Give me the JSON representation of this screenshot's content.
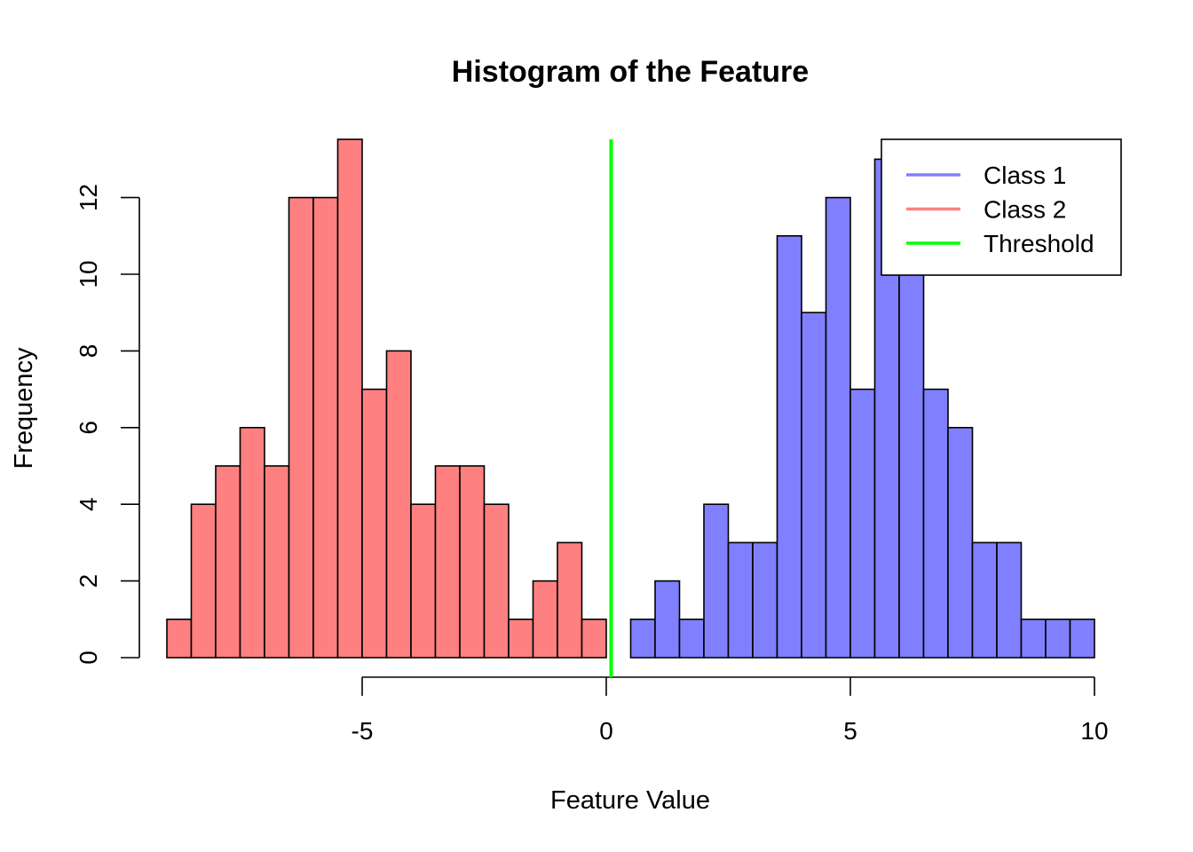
{
  "chart_data": {
    "type": "bar",
    "title": "Histogram of the Feature",
    "xlabel": "Feature Value",
    "ylabel": "Frequency",
    "bin_width": 0.5,
    "xlim": [
      -9,
      10
    ],
    "ylim": [
      0,
      13.5
    ],
    "x_ticks": [
      -5,
      0,
      5,
      10
    ],
    "x_tick_labels": [
      "-5",
      "0",
      "5",
      "10"
    ],
    "y_ticks": [
      0,
      2,
      4,
      6,
      8,
      10,
      12
    ],
    "y_tick_labels": [
      "0",
      "2",
      "4",
      "6",
      "8",
      "10",
      "12"
    ],
    "grid": false,
    "legend_position": "top-right",
    "series": [
      {
        "name": "Class 2",
        "color": "#ff8080",
        "bin_starts": [
          -9,
          -8.5,
          -8,
          -7.5,
          -7,
          -6.5,
          -6,
          -5.5,
          -5,
          -4.5,
          -4,
          -3.5,
          -3,
          -2.5,
          -2,
          -1.5,
          -1,
          -0.5
        ],
        "values": [
          1,
          4,
          5,
          6,
          5,
          12,
          12,
          14,
          7,
          8,
          4,
          5,
          5,
          4,
          1,
          2,
          3,
          1
        ]
      },
      {
        "name": "Class 1",
        "color": "#8080ff",
        "bin_starts": [
          0.5,
          1,
          1.5,
          2,
          2.5,
          3,
          3.5,
          4,
          4.5,
          5,
          5.5,
          6,
          6.5,
          7,
          7.5,
          8,
          8.5,
          9,
          9.5
        ],
        "values": [
          1,
          2,
          1,
          4,
          3,
          3,
          11,
          9,
          12,
          7,
          13,
          10,
          7,
          6,
          3,
          3,
          1,
          1,
          1
        ]
      }
    ],
    "threshold": {
      "name": "Threshold",
      "value": 0.1,
      "color": "#00ff00"
    },
    "legend": [
      {
        "label": "Class 1",
        "color": "#8080ff"
      },
      {
        "label": "Class 2",
        "color": "#ff8080"
      },
      {
        "label": "Threshold",
        "color": "#00ff00"
      }
    ]
  }
}
